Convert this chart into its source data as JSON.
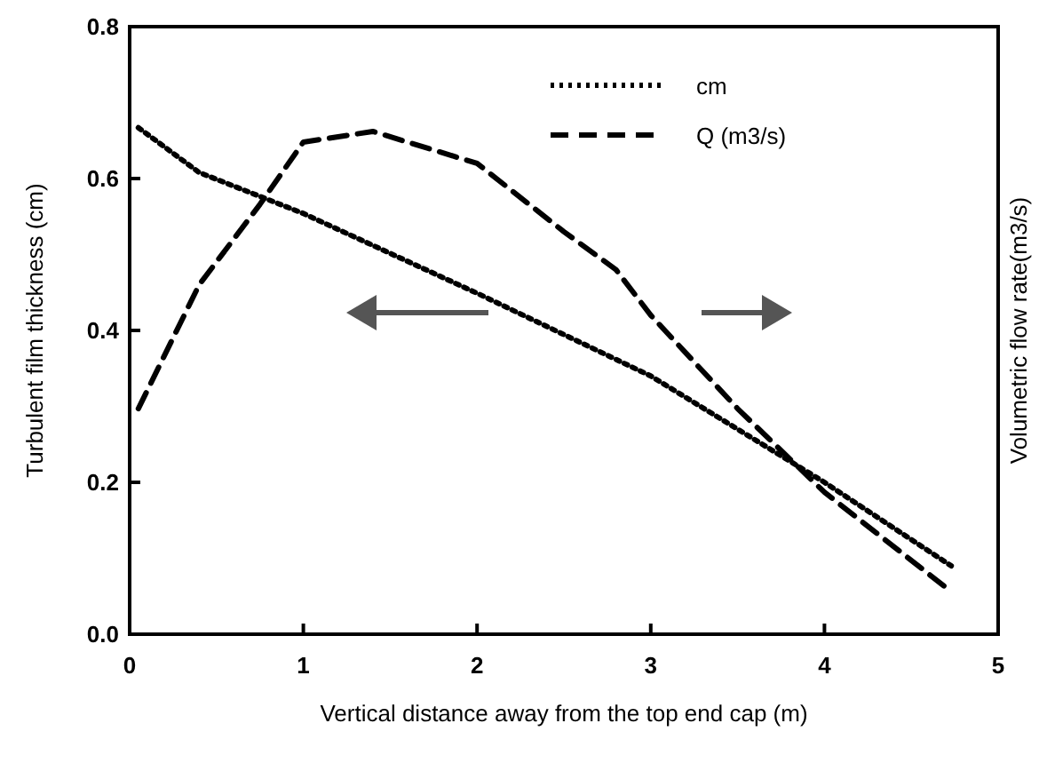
{
  "chart_data": {
    "type": "line",
    "xlabel": "Vertical distance away from the top end cap (m)",
    "ylabel": "Turbulent film thickness (cm)",
    "y2label": "Volumetric flow rate(m3/s)",
    "xlim": [
      0,
      5
    ],
    "xticks": [
      0,
      1,
      2,
      3,
      4,
      5
    ],
    "ylim": [
      0,
      0.8
    ],
    "yticks": [
      {
        "value": 0,
        "label": "0.0"
      },
      0.2,
      0.4,
      0.6,
      0.8
    ],
    "marker": "none",
    "grid": false,
    "legend": "top right",
    "series": [
      {
        "name": "cm",
        "color": "#000000",
        "line_style": "dotted",
        "x": [
          0.05,
          0.4,
          1,
          2,
          3,
          4,
          4.73
        ],
        "values": [
          0.667,
          0.608,
          0.554,
          0.449,
          0.34,
          0.2,
          0.09
        ]
      },
      {
        "name": "Q (m3/s)",
        "color": "#000000",
        "line_style": "dashed",
        "x": [
          0.05,
          0.4,
          0.75,
          1,
          1.4,
          2,
          2.5,
          2.8,
          3,
          3.5,
          4,
          4.73
        ],
        "values": [
          0.297,
          0.46,
          0.566,
          0.648,
          0.662,
          0.62,
          0.53,
          0.48,
          0.42,
          0.297,
          0.187,
          0.056
        ]
      }
    ]
  }
}
